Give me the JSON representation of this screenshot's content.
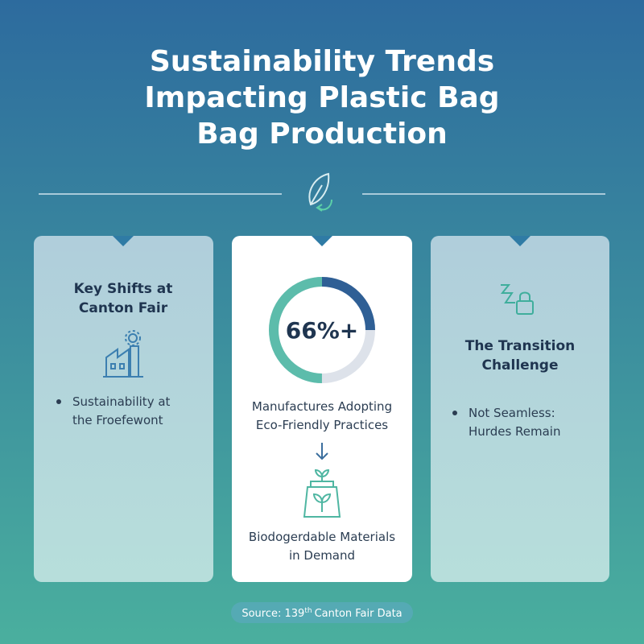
{
  "header": {
    "title_lines": [
      "Sustainability Trends",
      "Impacting Plastic Bag",
      "Bag Production"
    ]
  },
  "cards": [
    {
      "title_lines": [
        "Key Shifts at",
        "Canton Fair"
      ],
      "bullet_lines": [
        "Sustainability at",
        "the Froefewont"
      ]
    },
    {
      "stat": "66%+",
      "caption_lines": [
        "Manufactures Adopting",
        "Eco-Friendly Practices"
      ],
      "result_lines": [
        "Biodogerdable Materials",
        "in Demand"
      ]
    },
    {
      "title_lines": [
        "The Transition",
        "Challenge"
      ],
      "bullet_lines": [
        "Not Seamless:",
        "Hurdes Remain"
      ]
    }
  ],
  "footer": {
    "source_prefix": "Source: 139",
    "source_sup": "th",
    "source_rest": "Canton Fair Data"
  }
}
